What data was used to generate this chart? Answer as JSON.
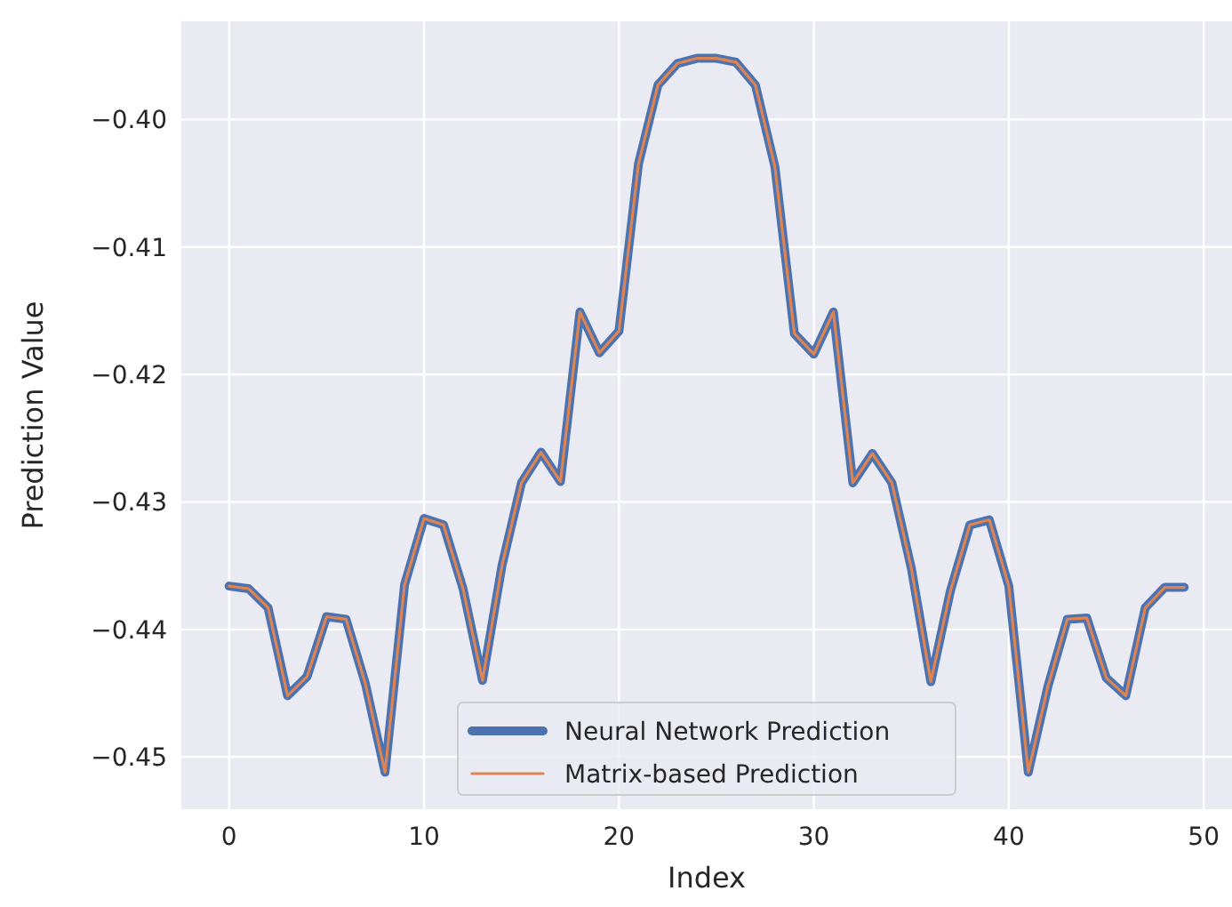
{
  "chart_data": {
    "type": "line",
    "xlabel": "Index",
    "ylabel": "Prediction Value",
    "x": [
      0,
      1,
      2,
      3,
      4,
      5,
      6,
      7,
      8,
      9,
      10,
      11,
      12,
      13,
      14,
      15,
      16,
      17,
      18,
      19,
      20,
      21,
      22,
      23,
      24,
      25,
      26,
      27,
      28,
      29,
      30,
      31,
      32,
      33,
      34,
      35,
      36,
      37,
      38,
      39,
      40,
      41,
      42,
      43,
      44,
      45,
      46,
      47,
      48,
      49
    ],
    "series": [
      {
        "name": "Neural Network Prediction",
        "color": "#4c72b0",
        "values": [
          -0.4366,
          -0.4368,
          -0.4383,
          -0.4452,
          -0.4437,
          -0.439,
          -0.4392,
          -0.4443,
          -0.4512,
          -0.4365,
          -0.4313,
          -0.4318,
          -0.4368,
          -0.444,
          -0.435,
          -0.4285,
          -0.4261,
          -0.4284,
          -0.4151,
          -0.4183,
          -0.4166,
          -0.4035,
          -0.3973,
          -0.3956,
          -0.3952,
          -0.3952,
          -0.3955,
          -0.3973,
          -0.4037,
          -0.4168,
          -0.4184,
          -0.4151,
          -0.4285,
          -0.4262,
          -0.4285,
          -0.4352,
          -0.4441,
          -0.437,
          -0.4318,
          -0.4314,
          -0.4366,
          -0.4512,
          -0.4445,
          -0.4392,
          -0.4391,
          -0.4438,
          -0.4452,
          -0.4383,
          -0.4367,
          -0.4367
        ]
      },
      {
        "name": "Matrix-based Prediction",
        "color": "#dd8452",
        "values": [
          -0.4366,
          -0.4368,
          -0.4383,
          -0.4452,
          -0.4437,
          -0.439,
          -0.4392,
          -0.4443,
          -0.4512,
          -0.4365,
          -0.4313,
          -0.4318,
          -0.4368,
          -0.444,
          -0.435,
          -0.4285,
          -0.4261,
          -0.4284,
          -0.4151,
          -0.4183,
          -0.4166,
          -0.4035,
          -0.3973,
          -0.3956,
          -0.3952,
          -0.3952,
          -0.3955,
          -0.3973,
          -0.4037,
          -0.4168,
          -0.4184,
          -0.4151,
          -0.4285,
          -0.4262,
          -0.4285,
          -0.4352,
          -0.4441,
          -0.437,
          -0.4318,
          -0.4314,
          -0.4366,
          -0.4512,
          -0.4445,
          -0.4392,
          -0.4391,
          -0.4438,
          -0.4452,
          -0.4383,
          -0.4367,
          -0.4367
        ]
      }
    ],
    "xlim": [
      -2.45,
      51.45
    ],
    "xticks": [
      0,
      10,
      20,
      30,
      40,
      50
    ],
    "ylim": [
      -0.4541,
      -0.3923
    ],
    "yticks": [
      {
        "value": -0.45,
        "label": "−0.45"
      },
      {
        "value": -0.44,
        "label": "−0.44"
      },
      {
        "value": -0.43,
        "label": "−0.43"
      },
      {
        "value": -0.42,
        "label": "−0.42"
      },
      {
        "value": -0.41,
        "label": "−0.41"
      },
      {
        "value": -0.4,
        "label": "−0.40"
      }
    ],
    "grid": true,
    "legend": "bottom",
    "marker": "none",
    "line_style": "solid"
  }
}
